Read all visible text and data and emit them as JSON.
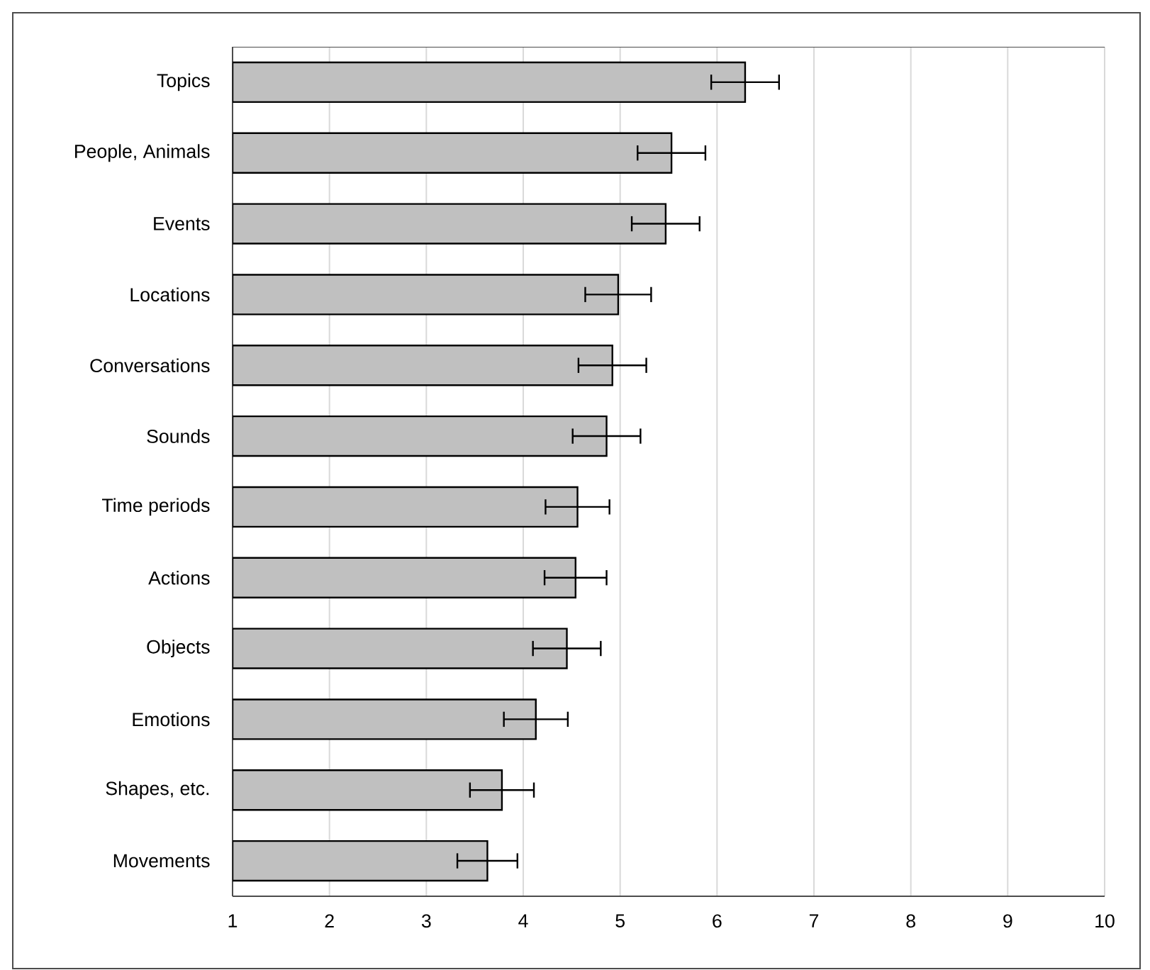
{
  "chart_data": {
    "type": "bar",
    "orientation": "horizontal",
    "categories": [
      "Topics",
      "People, Animals",
      "Events",
      "Locations",
      "Conversations",
      "Sounds",
      "Time periods",
      "Actions",
      "Objects",
      "Emotions",
      "Shapes, etc.",
      "Movements"
    ],
    "values": [
      6.29,
      5.53,
      5.47,
      4.98,
      4.92,
      4.86,
      4.56,
      4.54,
      4.45,
      4.13,
      3.78,
      3.63
    ],
    "errors": [
      0.35,
      0.35,
      0.35,
      0.34,
      0.35,
      0.35,
      0.33,
      0.32,
      0.35,
      0.33,
      0.33,
      0.31
    ],
    "color": "#c0c0c0",
    "xlim": [
      1,
      10
    ],
    "xticks": [
      1,
      2,
      3,
      4,
      5,
      6,
      7,
      8,
      9,
      10
    ],
    "grid": "x"
  }
}
